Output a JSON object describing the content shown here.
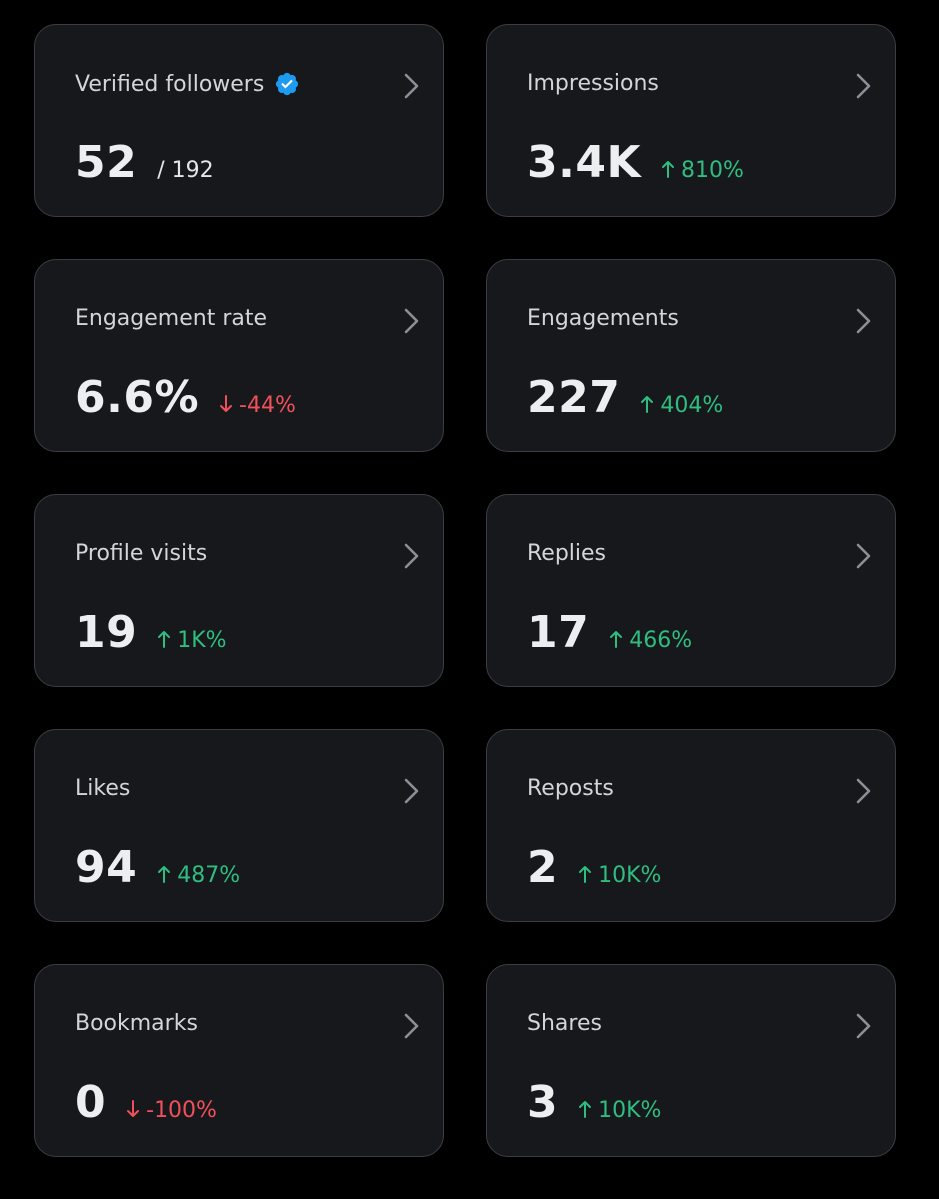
{
  "cards": [
    {
      "title": "Verified followers",
      "value": "52",
      "total": "/ 192",
      "verified_icon": "verified-badge-icon",
      "chevron_icon": "chevron-right-icon"
    },
    {
      "title": "Impressions",
      "value": "3.4K",
      "change": "810%",
      "direction": "up",
      "arrow_icon": "arrow-up-icon",
      "chevron_icon": "chevron-right-icon"
    },
    {
      "title": "Engagement rate",
      "value": "6.6%",
      "change": "-44%",
      "direction": "down",
      "arrow_icon": "arrow-down-icon",
      "chevron_icon": "chevron-right-icon"
    },
    {
      "title": "Engagements",
      "value": "227",
      "change": "404%",
      "direction": "up",
      "arrow_icon": "arrow-up-icon",
      "chevron_icon": "chevron-right-icon"
    },
    {
      "title": "Profile visits",
      "value": "19",
      "change": "1K%",
      "direction": "up",
      "arrow_icon": "arrow-up-icon",
      "chevron_icon": "chevron-right-icon"
    },
    {
      "title": "Replies",
      "value": "17",
      "change": "466%",
      "direction": "up",
      "arrow_icon": "arrow-up-icon",
      "chevron_icon": "chevron-right-icon"
    },
    {
      "title": "Likes",
      "value": "94",
      "change": "487%",
      "direction": "up",
      "arrow_icon": "arrow-up-icon",
      "chevron_icon": "chevron-right-icon"
    },
    {
      "title": "Reposts",
      "value": "2",
      "change": "10K%",
      "direction": "up",
      "arrow_icon": "arrow-up-icon",
      "chevron_icon": "chevron-right-icon"
    },
    {
      "title": "Bookmarks",
      "value": "0",
      "change": "-100%",
      "direction": "down",
      "arrow_icon": "arrow-down-icon",
      "chevron_icon": "chevron-right-icon"
    },
    {
      "title": "Shares",
      "value": "3",
      "change": "10K%",
      "direction": "up",
      "arrow_icon": "arrow-up-icon",
      "chevron_icon": "chevron-right-icon"
    }
  ],
  "colors": {
    "up": "#2fbd80",
    "down": "#f0505a",
    "verified": "#1d9bf0",
    "chevron": "#8b8f96"
  }
}
